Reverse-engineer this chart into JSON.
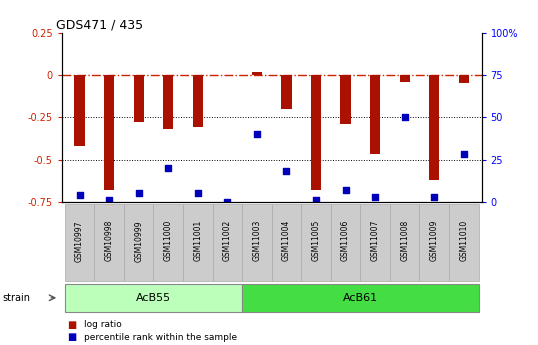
{
  "title": "GDS471 / 435",
  "samples": [
    "GSM10997",
    "GSM10998",
    "GSM10999",
    "GSM11000",
    "GSM11001",
    "GSM11002",
    "GSM11003",
    "GSM11004",
    "GSM11005",
    "GSM11006",
    "GSM11007",
    "GSM11008",
    "GSM11009",
    "GSM11010"
  ],
  "log_ratio": [
    -0.42,
    -0.68,
    -0.28,
    -0.32,
    -0.31,
    0.0,
    0.02,
    -0.2,
    -0.68,
    -0.29,
    -0.47,
    -0.04,
    -0.62,
    -0.05
  ],
  "percentile_rank": [
    4,
    1,
    5,
    20,
    5,
    0,
    40,
    18,
    1,
    7,
    3,
    50,
    3,
    28
  ],
  "groups": [
    {
      "label": "AcB55",
      "start": 0,
      "end": 5,
      "color": "#aaffaa"
    },
    {
      "label": "AcB61",
      "start": 6,
      "end": 13,
      "color": "#55ee55"
    }
  ],
  "ylim_left": [
    -0.75,
    0.25
  ],
  "ylim_right": [
    0,
    100
  ],
  "yticks_left": [
    -0.75,
    -0.5,
    -0.25,
    0,
    0.25
  ],
  "yticks_right": [
    0,
    25,
    50,
    75,
    100
  ],
  "bar_color": "#aa1100",
  "dot_color": "#0000bb",
  "hline_color": "#cc2200",
  "bg_color": "white",
  "sample_box_color": "#cccccc",
  "group1_color": "#bbffbb",
  "group2_color": "#44dd44"
}
